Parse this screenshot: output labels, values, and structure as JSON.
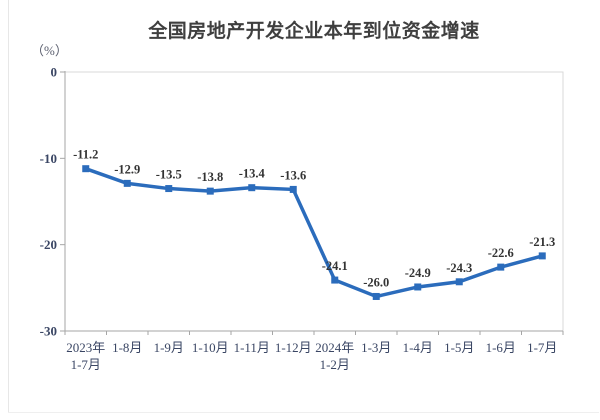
{
  "chart_data": {
    "type": "line",
    "title": "全国房地产开发企业本年到位资金增速",
    "unit_label": "（%）",
    "categories": [
      "2023年\n1-7月",
      "1-8月",
      "1-9月",
      "1-10月",
      "1-11月",
      "1-12月",
      "2024年\n1-2月",
      "1-3月",
      "1-4月",
      "1-5月",
      "1-6月",
      "1-7月"
    ],
    "values": [
      -11.2,
      -12.9,
      -13.5,
      -13.8,
      -13.4,
      -13.6,
      -24.1,
      -26.0,
      -24.9,
      -24.3,
      -22.6,
      -21.3
    ],
    "data_labels": [
      "-11.2",
      "-12.9",
      "-13.5",
      "-13.8",
      "-13.4",
      "-13.6",
      "-24.1",
      "-26.0",
      "-24.9",
      "-24.3",
      "-22.6",
      "-21.3"
    ],
    "ylim": [
      -30,
      0
    ],
    "yticks": [
      0,
      -10,
      -20,
      -30
    ],
    "ytick_labels": [
      "0",
      "-10",
      "-20",
      "-30"
    ],
    "grid": false,
    "legend": "none",
    "marker": "square",
    "colors": {
      "line": "#2b6cbc",
      "marker": "#2b6cbc",
      "title": "#3f3f3f",
      "tick_label": "#3a4664",
      "data_label": "#333333",
      "axis_line": "#a6a6a6",
      "plot_border": "#d9d9d9",
      "background": "#ffffff"
    }
  }
}
